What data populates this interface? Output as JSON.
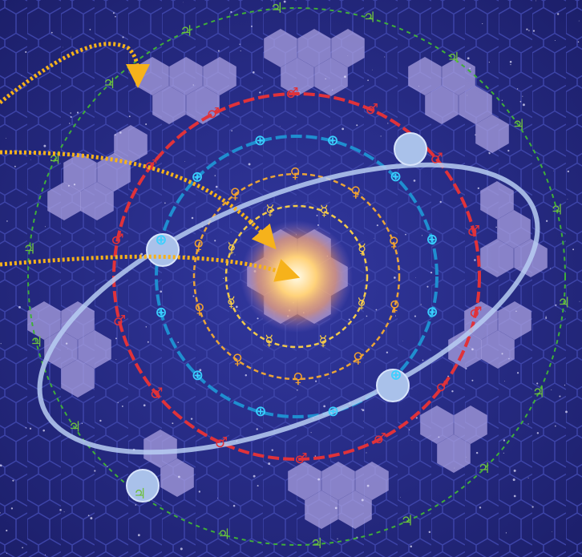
{
  "symbols": {
    "mercury": "☿",
    "venus": "♀",
    "earth": "⊕",
    "mars": "♂",
    "jupiter": "♃"
  }
}
